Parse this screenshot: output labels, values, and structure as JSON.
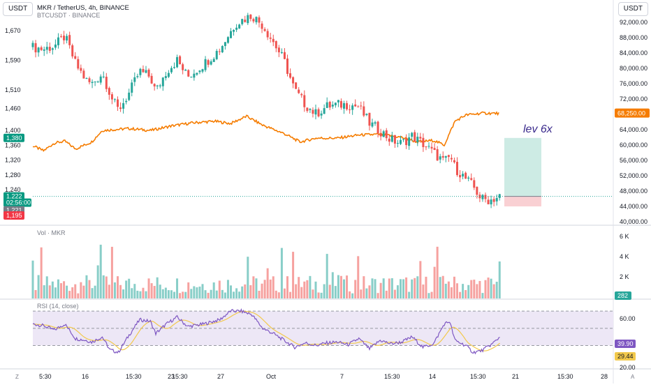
{
  "header": {
    "left_currency": "USDT",
    "right_currency": "USDT",
    "symbol_line": "MKR / TetherUS, 4h, BINANCE",
    "compare_line": "BTCUSDT · BINANCE"
  },
  "annotation": {
    "text": "lev 6x"
  },
  "price_axis_left": {
    "ticks": [
      "1,670",
      "1,590",
      "1,510",
      "1,460",
      "1,400",
      "1,360",
      "1,320",
      "1,280",
      "1,240"
    ],
    "tick_values": [
      1670,
      1590,
      1510,
      1460,
      1400,
      1360,
      1320,
      1280,
      1240
    ],
    "tags": [
      {
        "text": "1,380",
        "color": "#089981"
      },
      {
        "text": "1,222",
        "color": "#089981"
      },
      {
        "text": "02:56:00",
        "color": "#089981"
      },
      {
        "text": "1,221",
        "color": "#787b86"
      },
      {
        "text": "1,195",
        "color": "#f23645"
      }
    ]
  },
  "price_axis_right": {
    "ticks": [
      "92,000.00",
      "88,000.00",
      "84,000.00",
      "80,000.00",
      "76,000.00",
      "72,000.00",
      "68,000.00",
      "64,000.00",
      "60,000.00",
      "56,000.00",
      "52,000.00",
      "48,000.00",
      "44,000.00",
      "40,000.00"
    ],
    "btc_tag": "68,250.00",
    "btc_color": "#f57c00"
  },
  "volume": {
    "label": "Vol · MKR",
    "ticks": [
      "6 K",
      "4 K",
      "2 K"
    ],
    "last_tag": "282"
  },
  "rsi": {
    "label": "RSI (14, close)",
    "ticks": [
      "60.00",
      "20.00"
    ],
    "tag_rsi": "39.90",
    "tag_ma": "29.44"
  },
  "time_axis": {
    "labels": [
      "5:30",
      "16",
      "15:30",
      "23",
      "15:30",
      "27",
      "Oct",
      "7",
      "15:30",
      "14",
      "15:30",
      "21",
      "15:30",
      "28"
    ]
  },
  "footer": {
    "left_icon": "Z",
    "right_icon": "A"
  },
  "colors": {
    "up": "#26a69a",
    "down": "#ef5350",
    "btc": "#f57c00",
    "rsi": "#7e57c2",
    "rsi_ma": "#f2c94c",
    "rsi_band": "#ede7f6",
    "position_profit": "#cdebe4",
    "position_loss": "#f9d0d3"
  },
  "chart_data": {
    "type": "candlestick",
    "title": "MKR / TetherUS, 4h, BINANCE",
    "compare_series": "BTCUSDT · BINANCE",
    "mkr_price_range": [
      1195,
      1715
    ],
    "btc_price_range": [
      39000,
      94000
    ],
    "candles_count": 166,
    "last_price": 1222,
    "btc_last": 68250,
    "volume_range": [
      0,
      6500
    ],
    "rsi_range": [
      15,
      75
    ],
    "rsi_last": 39.9,
    "rsi_ma_last": 29.44,
    "position": {
      "entry": 1222,
      "target": 1380,
      "stop": 1195,
      "label": "lev 6x"
    },
    "mkr_path": [
      [
        0,
        1625
      ],
      [
        10,
        1620
      ],
      [
        20,
        1628
      ],
      [
        30,
        1655
      ],
      [
        40,
        1580
      ],
      [
        50,
        1535
      ],
      [
        55,
        1525
      ],
      [
        65,
        1555
      ],
      [
        75,
        1480
      ],
      [
        80,
        1455
      ],
      [
        90,
        1500
      ],
      [
        100,
        1560
      ],
      [
        110,
        1545
      ],
      [
        115,
        1505
      ],
      [
        125,
        1560
      ],
      [
        135,
        1590
      ],
      [
        145,
        1545
      ],
      [
        160,
        1580
      ],
      [
        175,
        1620
      ],
      [
        190,
        1690
      ],
      [
        205,
        1712
      ],
      [
        215,
        1685
      ],
      [
        225,
        1640
      ],
      [
        235,
        1590
      ],
      [
        245,
        1510
      ],
      [
        255,
        1470
      ],
      [
        265,
        1445
      ],
      [
        275,
        1465
      ],
      [
        285,
        1470
      ],
      [
        295,
        1470
      ],
      [
        305,
        1465
      ],
      [
        315,
        1420
      ],
      [
        325,
        1400
      ],
      [
        335,
        1375
      ],
      [
        345,
        1365
      ],
      [
        355,
        1385
      ],
      [
        365,
        1365
      ],
      [
        375,
        1340
      ],
      [
        385,
        1315
      ],
      [
        391,
        1330
      ],
      [
        395,
        1300
      ],
      [
        405,
        1270
      ],
      [
        412,
        1250
      ],
      [
        420,
        1215
      ],
      [
        428,
        1212
      ],
      [
        437,
        1222
      ]
    ],
    "btc_path": [
      [
        0,
        59800
      ],
      [
        10,
        58500
      ],
      [
        20,
        60500
      ],
      [
        30,
        61000
      ],
      [
        40,
        59000
      ],
      [
        55,
        60800
      ],
      [
        65,
        63800
      ],
      [
        90,
        64300
      ],
      [
        110,
        63800
      ],
      [
        130,
        65000
      ],
      [
        150,
        65800
      ],
      [
        170,
        66200
      ],
      [
        185,
        65600
      ],
      [
        200,
        67500
      ],
      [
        215,
        65200
      ],
      [
        235,
        63000
      ],
      [
        250,
        60800
      ],
      [
        265,
        61800
      ],
      [
        285,
        61800
      ],
      [
        305,
        62600
      ],
      [
        325,
        62800
      ],
      [
        345,
        62000
      ],
      [
        360,
        60800
      ],
      [
        375,
        61200
      ],
      [
        385,
        60000
      ],
      [
        395,
        66200
      ],
      [
        405,
        67800
      ],
      [
        420,
        68300
      ],
      [
        437,
        68250
      ]
    ],
    "rsi_path": [
      [
        0,
        55
      ],
      [
        10,
        53
      ],
      [
        20,
        48
      ],
      [
        30,
        55
      ],
      [
        40,
        38
      ],
      [
        50,
        36
      ],
      [
        55,
        34
      ],
      [
        65,
        40
      ],
      [
        72,
        25
      ],
      [
        80,
        22
      ],
      [
        90,
        42
      ],
      [
        100,
        60
      ],
      [
        110,
        58
      ],
      [
        115,
        44
      ],
      [
        125,
        55
      ],
      [
        135,
        63
      ],
      [
        145,
        52
      ],
      [
        160,
        55
      ],
      [
        175,
        60
      ],
      [
        185,
        70
      ],
      [
        195,
        70
      ],
      [
        205,
        66
      ],
      [
        215,
        50
      ],
      [
        225,
        44
      ],
      [
        235,
        36
      ],
      [
        245,
        28
      ],
      [
        255,
        33
      ],
      [
        265,
        30
      ],
      [
        275,
        33
      ],
      [
        285,
        34
      ],
      [
        295,
        31
      ],
      [
        305,
        38
      ],
      [
        315,
        26
      ],
      [
        325,
        36
      ],
      [
        335,
        32
      ],
      [
        345,
        34
      ],
      [
        355,
        40
      ],
      [
        365,
        28
      ],
      [
        375,
        32
      ],
      [
        385,
        55
      ],
      [
        390,
        58
      ],
      [
        395,
        36
      ],
      [
        405,
        30
      ],
      [
        412,
        22
      ],
      [
        420,
        24
      ],
      [
        430,
        32
      ],
      [
        437,
        40
      ]
    ]
  }
}
